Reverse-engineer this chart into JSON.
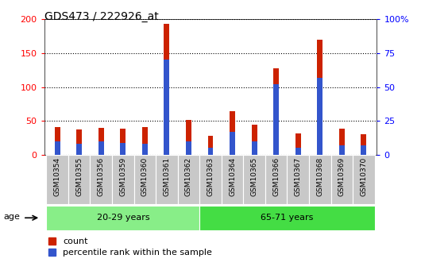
{
  "title": "GDS473 / 222926_at",
  "samples": [
    "GSM10354",
    "GSM10355",
    "GSM10356",
    "GSM10359",
    "GSM10360",
    "GSM10361",
    "GSM10362",
    "GSM10363",
    "GSM10364",
    "GSM10365",
    "GSM10366",
    "GSM10367",
    "GSM10368",
    "GSM10369",
    "GSM10370"
  ],
  "count_values": [
    41,
    37,
    40,
    39,
    41,
    193,
    52,
    28,
    64,
    45,
    128,
    32,
    170,
    38,
    30
  ],
  "percentile_values": [
    10,
    8,
    10,
    9,
    8,
    70,
    10,
    5,
    17,
    10,
    52,
    5,
    57,
    7,
    7
  ],
  "bar_color_count": "#cc2200",
  "bar_color_pct": "#3355cc",
  "groups": [
    {
      "label": "20-29 years",
      "start": 0,
      "end": 7,
      "color": "#88ee88"
    },
    {
      "label": "65-71 years",
      "start": 7,
      "end": 15,
      "color": "#44dd44"
    }
  ],
  "age_label": "age",
  "ylim_left": [
    0,
    200
  ],
  "ylim_right": [
    0,
    100
  ],
  "yticks_left": [
    0,
    50,
    100,
    150,
    200
  ],
  "yticks_right": [
    0,
    25,
    50,
    75,
    100
  ],
  "ytick_labels_right": [
    "0",
    "25",
    "50",
    "75",
    "100%"
  ],
  "legend_count": "count",
  "legend_pct": "percentile rank within the sample",
  "plot_bg_color": "#ffffff",
  "xtick_bg_color": "#c8c8c8",
  "bar_width": 0.25
}
